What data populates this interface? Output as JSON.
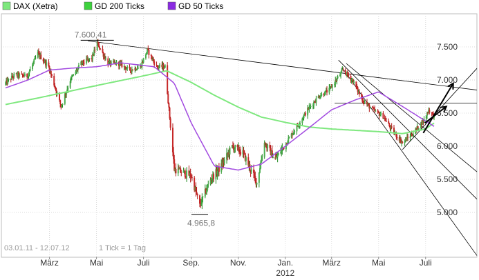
{
  "colors": {
    "ohlc_up": "#1e8a1e",
    "ohlc_down": "#b01818",
    "candle_fill_up": "#4caf50",
    "candle_fill_down": "#c62828",
    "gd200": "#7ee87e",
    "gd50": "#a24ae0",
    "trendline": "#000000",
    "grid": "#d8d8d8",
    "plot_border": "#bdbdbd",
    "label_text": "#333333",
    "footer_text": "#999999"
  },
  "legend": [
    {
      "key": "dax",
      "label": "DAX (Xetra)",
      "color": "#7ee87e"
    },
    {
      "key": "gd200",
      "label": "GD 200 Ticks",
      "color": "#3dd23d"
    },
    {
      "key": "gd50",
      "label": "GD 50 Ticks",
      "color": "#8a2be2"
    }
  ],
  "footer": {
    "range_text": "03.01.11 - 12.07.12",
    "tick_text": "1 Tick = 1 Tag"
  },
  "annotations": [
    {
      "label": "7.600,41",
      "date": "2011-05-02",
      "value": 7600.41
    },
    {
      "label": "4.965,8",
      "date": "2011-09-12",
      "value": 4965.8
    }
  ],
  "chart_data": {
    "type": "line",
    "title": "",
    "xlabel": "",
    "ylabel": "",
    "x_range": [
      "2011-01-03",
      "2012-07-12"
    ],
    "ylim": [
      4850,
      7900
    ],
    "y_scale": "linear",
    "y_axis_position": "right",
    "grid": true,
    "legend_position": "top-left",
    "y_ticks": [
      5000,
      5500,
      6000,
      6500,
      7000,
      7500
    ],
    "y_tick_labels": [
      "5.000",
      "5.500",
      "6.000",
      "6.500",
      "7.000",
      "7.500"
    ],
    "x_ticks": [
      {
        "date": "2011-03-01",
        "label": "März"
      },
      {
        "date": "2011-05-01",
        "label": "Mai"
      },
      {
        "date": "2011-07-01",
        "label": "Juli"
      },
      {
        "date": "2011-09-01",
        "label": "Sep."
      },
      {
        "date": "2011-11-01",
        "label": "Nov."
      },
      {
        "date": "2012-01-01",
        "label": "Jan."
      },
      {
        "date": "2012-03-01",
        "label": "März"
      },
      {
        "date": "2012-05-01",
        "label": "Mai"
      },
      {
        "date": "2012-07-01",
        "label": "Juli"
      }
    ],
    "year_label": {
      "date": "2012-01-01",
      "label": "2012"
    },
    "series": [
      {
        "name": "DAX (Xetra)",
        "style": "ohlc",
        "points": [
          {
            "x": "2011-01-03",
            "y": 6950
          },
          {
            "x": "2011-01-15",
            "y": 7080
          },
          {
            "x": "2011-01-31",
            "y": 7060
          },
          {
            "x": "2011-02-14",
            "y": 7400
          },
          {
            "x": "2011-02-28",
            "y": 7200
          },
          {
            "x": "2011-03-16",
            "y": 6600
          },
          {
            "x": "2011-03-28",
            "y": 7000
          },
          {
            "x": "2011-04-11",
            "y": 7250
          },
          {
            "x": "2011-04-25",
            "y": 7330
          },
          {
            "x": "2011-05-02",
            "y": 7560
          },
          {
            "x": "2011-05-16",
            "y": 7250
          },
          {
            "x": "2011-05-30",
            "y": 7250
          },
          {
            "x": "2011-06-13",
            "y": 7150
          },
          {
            "x": "2011-06-27",
            "y": 7200
          },
          {
            "x": "2011-07-06",
            "y": 7450
          },
          {
            "x": "2011-07-18",
            "y": 7200
          },
          {
            "x": "2011-07-29",
            "y": 7200
          },
          {
            "x": "2011-08-05",
            "y": 6300
          },
          {
            "x": "2011-08-10",
            "y": 5650
          },
          {
            "x": "2011-08-22",
            "y": 5600
          },
          {
            "x": "2011-09-01",
            "y": 5550
          },
          {
            "x": "2011-09-12",
            "y": 5100
          },
          {
            "x": "2011-09-26",
            "y": 5500
          },
          {
            "x": "2011-10-10",
            "y": 5700
          },
          {
            "x": "2011-10-24",
            "y": 6000
          },
          {
            "x": "2011-11-07",
            "y": 5900
          },
          {
            "x": "2011-11-25",
            "y": 5450
          },
          {
            "x": "2011-12-05",
            "y": 6050
          },
          {
            "x": "2011-12-19",
            "y": 5800
          },
          {
            "x": "2012-01-02",
            "y": 6050
          },
          {
            "x": "2012-01-16",
            "y": 6300
          },
          {
            "x": "2012-01-30",
            "y": 6550
          },
          {
            "x": "2012-02-13",
            "y": 6750
          },
          {
            "x": "2012-02-27",
            "y": 6850
          },
          {
            "x": "2012-03-16",
            "y": 7150
          },
          {
            "x": "2012-03-28",
            "y": 7000
          },
          {
            "x": "2012-04-10",
            "y": 6700
          },
          {
            "x": "2012-04-23",
            "y": 6550
          },
          {
            "x": "2012-05-07",
            "y": 6450
          },
          {
            "x": "2012-05-18",
            "y": 6250
          },
          {
            "x": "2012-06-01",
            "y": 6050
          },
          {
            "x": "2012-06-15",
            "y": 6200
          },
          {
            "x": "2012-06-29",
            "y": 6400
          },
          {
            "x": "2012-07-05",
            "y": 6550
          },
          {
            "x": "2012-07-12",
            "y": 6450
          }
        ]
      },
      {
        "name": "GD 200 Ticks",
        "style": "line",
        "points": [
          {
            "x": "2011-01-03",
            "y": 6630
          },
          {
            "x": "2011-02-15",
            "y": 6730
          },
          {
            "x": "2011-03-31",
            "y": 6840
          },
          {
            "x": "2011-05-15",
            "y": 6950
          },
          {
            "x": "2011-06-30",
            "y": 7060
          },
          {
            "x": "2011-07-31",
            "y": 7140
          },
          {
            "x": "2011-08-31",
            "y": 6970
          },
          {
            "x": "2011-10-01",
            "y": 6770
          },
          {
            "x": "2011-11-01",
            "y": 6590
          },
          {
            "x": "2011-12-01",
            "y": 6440
          },
          {
            "x": "2012-01-01",
            "y": 6360
          },
          {
            "x": "2012-02-01",
            "y": 6290
          },
          {
            "x": "2012-03-01",
            "y": 6260
          },
          {
            "x": "2012-04-01",
            "y": 6240
          },
          {
            "x": "2012-05-01",
            "y": 6220
          },
          {
            "x": "2012-06-01",
            "y": 6190
          },
          {
            "x": "2012-07-01",
            "y": 6260
          },
          {
            "x": "2012-07-12",
            "y": 6350
          }
        ]
      },
      {
        "name": "GD 50 Ticks",
        "style": "line",
        "points": [
          {
            "x": "2011-01-03",
            "y": 6880
          },
          {
            "x": "2011-02-01",
            "y": 7000
          },
          {
            "x": "2011-03-01",
            "y": 7150
          },
          {
            "x": "2011-03-31",
            "y": 7180
          },
          {
            "x": "2011-05-01",
            "y": 7200
          },
          {
            "x": "2011-06-01",
            "y": 7260
          },
          {
            "x": "2011-07-15",
            "y": 7200
          },
          {
            "x": "2011-08-10",
            "y": 6950
          },
          {
            "x": "2011-09-01",
            "y": 6350
          },
          {
            "x": "2011-10-01",
            "y": 5700
          },
          {
            "x": "2011-11-01",
            "y": 5640
          },
          {
            "x": "2011-12-01",
            "y": 5730
          },
          {
            "x": "2012-01-01",
            "y": 6000
          },
          {
            "x": "2012-02-01",
            "y": 6280
          },
          {
            "x": "2012-03-01",
            "y": 6550
          },
          {
            "x": "2012-04-01",
            "y": 6700
          },
          {
            "x": "2012-05-01",
            "y": 6820
          },
          {
            "x": "2012-06-01",
            "y": 6600
          },
          {
            "x": "2012-07-12",
            "y": 6300
          }
        ]
      },
      {
        "name": "Trendlinie oben",
        "style": "trendline",
        "points": [
          {
            "x": "2011-04-20",
            "y": 7590
          },
          {
            "x": "2012-07-12",
            "y": 6930
          }
        ]
      },
      {
        "name": "Horizontale 6.650",
        "style": "trendline",
        "points": [
          {
            "x": "2012-03-05",
            "y": 6650
          },
          {
            "x": "2012-07-12",
            "y": 6650
          }
        ]
      },
      {
        "name": "Keil oben",
        "style": "trendline",
        "points": [
          {
            "x": "2012-03-20",
            "y": 7250
          },
          {
            "x": "2012-07-12",
            "y": 6150
          }
        ]
      },
      {
        "name": "Keil unten",
        "style": "trendline",
        "points": [
          {
            "x": "2012-06-01",
            "y": 5950
          },
          {
            "x": "2012-07-12",
            "y": 6470
          }
        ]
      },
      {
        "name": "Kanal unten",
        "style": "trendline",
        "points": [
          {
            "x": "2012-03-15",
            "y": 7180
          },
          {
            "x": "2012-07-12",
            "y": 5250
          }
        ]
      },
      {
        "name": "Fächerlinie",
        "style": "trendline",
        "points": [
          {
            "x": "2012-03-10",
            "y": 7300
          },
          {
            "x": "2012-07-12",
            "y": 5850
          }
        ]
      },
      {
        "name": "Pfeil 1",
        "style": "arrow",
        "points": [
          {
            "x": "2012-06-28",
            "y": 6200
          },
          {
            "x": "2012-07-10",
            "y": 6950
          }
        ]
      },
      {
        "name": "Pfeil 2",
        "style": "arrow",
        "points": [
          {
            "x": "2012-06-30",
            "y": 6350
          },
          {
            "x": "2012-07-10",
            "y": 6600
          }
        ]
      }
    ]
  }
}
